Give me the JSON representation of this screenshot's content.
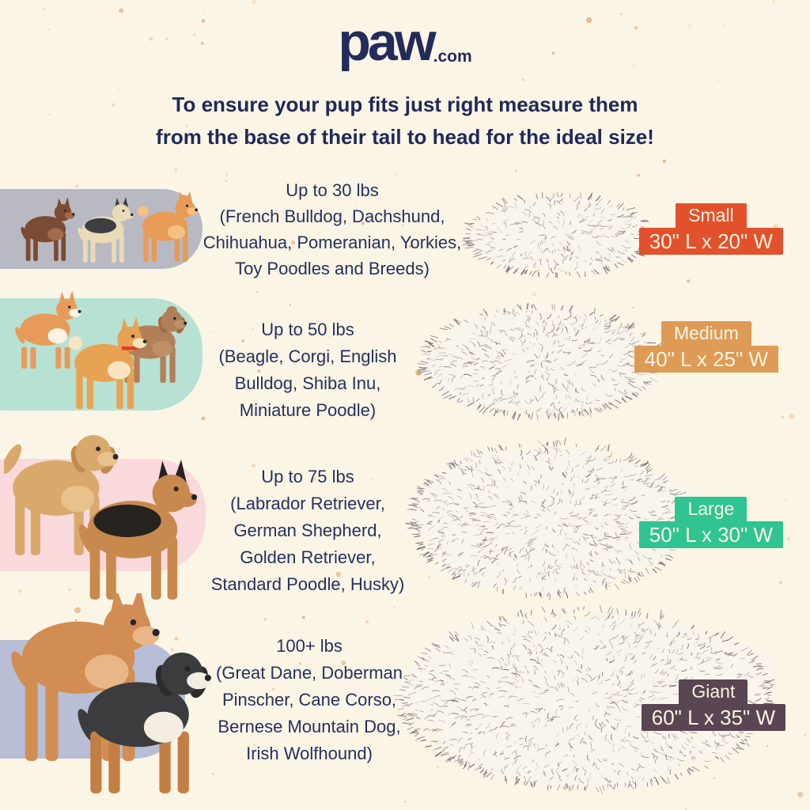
{
  "page": {
    "background_color": "#FBF5E6",
    "speckle_colors": [
      "#EFD6AE",
      "#E5BC8D",
      "#DFAE7C"
    ],
    "text_color": "#27305F",
    "headline_color": "#20295A"
  },
  "logo": {
    "word": "paw",
    "tld": ".com",
    "color": "#232B5C"
  },
  "headline": {
    "line1": "To ensure your pup fits just right measure them",
    "line2": "from the base of their tail to head for the ideal size!"
  },
  "bed_style": {
    "fill": "#FAF5EC",
    "fur_colors": [
      "#6E5D68",
      "#84737E",
      "#594A55"
    ]
  },
  "rows": [
    {
      "weight": "Up to 30 lbs",
      "breeds": "(French Bulldog, Dachshund,\nChihuahua, Pomeranian, Yorkies,\nToy Poodles and Breeds)",
      "size_label": "Small",
      "dimensions": "30\" L x 20\" W",
      "badge_color": "#E2512B",
      "pill_color": "#B9B9C4",
      "dogs": [
        {
          "name": "chihuahua",
          "body": "#7B4B33",
          "accent": "#A06C4B",
          "ears": "point",
          "tail": "down"
        },
        {
          "name": "yorkshire-terrier",
          "body": "#E9DAB8",
          "dark": "#3E3E42",
          "ears": "point",
          "tail": "down"
        },
        {
          "name": "pomeranian",
          "body": "#E79B55",
          "accent": "#F4C180",
          "ears": "point",
          "tail": "curl",
          "fluff": true
        }
      ]
    },
    {
      "weight": "Up to 50 lbs",
      "breeds": "(Beagle, Corgi, English\nBulldog, Shiba Inu,\nMiniature Poodle)",
      "size_label": "Medium",
      "dimensions": "40\" L x 25\" W",
      "badge_color": "#DE9B55",
      "pill_color": "#B7E2D3",
      "dogs": [
        {
          "name": "corgi",
          "body": "#E89A5B",
          "accent": "#FFF4E4",
          "ears": "point",
          "tail": "down",
          "legLen": 27
        },
        {
          "name": "miniature-poodle",
          "body": "#B28058",
          "accent": "#BF8F66",
          "earColor": "#9A6C46",
          "ears": "floppy",
          "tail": "down",
          "fluff": true
        },
        {
          "name": "shiba-inu",
          "body": "#E8A253",
          "accent": "#F8E4C0",
          "ears": "point",
          "tail": "curl",
          "collar": "#D8402B"
        }
      ]
    },
    {
      "weight": "Up to 75 lbs",
      "breeds": "(Labrador Retriever,\nGerman Shepherd,\nGolden Retriever,\nStandard Poodle, Husky)",
      "size_label": "Large",
      "dimensions": "50\" L x 30\" W",
      "badge_color": "#2FC492",
      "pill_color": "#F9D9DC",
      "dogs": [
        {
          "name": "golden-retriever",
          "body": "#D9A96C",
          "accent": "#E8C18B",
          "earColor": "#C08B4F",
          "ears": "floppy",
          "tail": "up"
        },
        {
          "name": "german-shepherd",
          "body": "#C8894E",
          "dark": "#26221F",
          "ears": "point",
          "tail": "down"
        }
      ]
    },
    {
      "weight": "100+ lbs",
      "breeds": "(Great Dane, Doberman\nPinscher, Cane Corso,\nBernese Mountain Dog,\nIrish Wolfhound)",
      "size_label": "Giant",
      "dimensions": "60\" L x 35\" W",
      "badge_color": "#5A4553",
      "pill_color": "#B7BED5",
      "dogs": [
        {
          "name": "great-dane",
          "body": "#D28D52",
          "accent": "#E8B687",
          "ears": "point",
          "tail": "down",
          "legLen": 55
        },
        {
          "name": "bernese-mountain-dog",
          "body": "#3C3C3E",
          "accent": "#F3EDE2",
          "legs": "#C27F45",
          "earColor": "#2C2C2E",
          "muzzle": "#F3EDE2",
          "ears": "floppy",
          "tail": "down",
          "legLen": 40
        }
      ]
    }
  ]
}
